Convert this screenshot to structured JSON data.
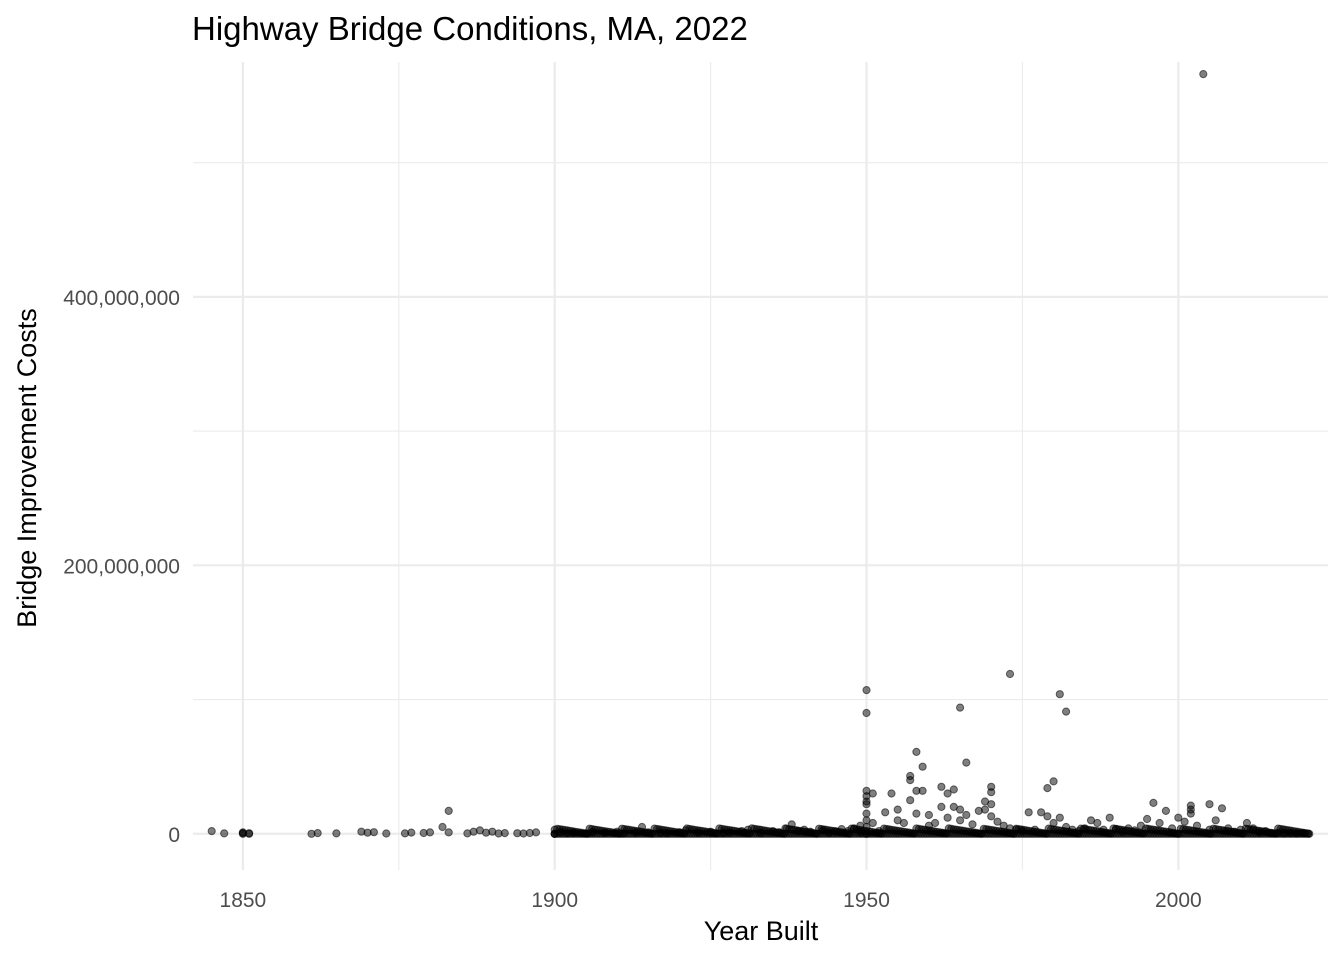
{
  "chart_data": {
    "type": "scatter",
    "title": "Highway Bridge Conditions, MA, 2022",
    "xlabel": "Year Built",
    "ylabel": "Bridge Improvement Costs",
    "xlim": [
      1842,
      2024
    ],
    "ylim": [
      -27000000,
      575000000
    ],
    "x_ticks": [
      {
        "value": 1850,
        "label": "1850"
      },
      {
        "value": 1900,
        "label": "1900"
      },
      {
        "value": 1950,
        "label": "1950"
      },
      {
        "value": 2000,
        "label": "2000"
      }
    ],
    "y_ticks": [
      {
        "value": 0,
        "label": "0"
      },
      {
        "value": 200000000,
        "label": "200,000,000"
      },
      {
        "value": 400000000,
        "label": "400,000,000"
      }
    ],
    "grid": true,
    "legend": "none",
    "point_color": "#000000",
    "point_alpha": 0.5,
    "points": [
      [
        1845,
        2000000
      ],
      [
        1847,
        300000
      ],
      [
        1850,
        0
      ],
      [
        1850,
        500000
      ],
      [
        1850,
        1000000
      ],
      [
        1851,
        0
      ],
      [
        1851,
        400000
      ],
      [
        1861,
        0
      ],
      [
        1862,
        500000
      ],
      [
        1865,
        300000
      ],
      [
        1869,
        1500000
      ],
      [
        1870,
        800000
      ],
      [
        1871,
        1200000
      ],
      [
        1873,
        200000
      ],
      [
        1876,
        300000
      ],
      [
        1877,
        900000
      ],
      [
        1879,
        600000
      ],
      [
        1880,
        1000000
      ],
      [
        1882,
        5000000
      ],
      [
        1883,
        17000000
      ],
      [
        1883,
        1000000
      ],
      [
        1886,
        300000
      ],
      [
        1887,
        1500000
      ],
      [
        1888,
        2500000
      ],
      [
        1889,
        800000
      ],
      [
        1890,
        1500000
      ],
      [
        1891,
        200000
      ],
      [
        1892,
        500000
      ],
      [
        1894,
        400000
      ],
      [
        1895,
        200000
      ],
      [
        1896,
        600000
      ],
      [
        1897,
        1000000
      ],
      [
        1900,
        0
      ],
      [
        1900,
        3000000
      ],
      [
        1901,
        1200000
      ],
      [
        1902,
        500000
      ],
      [
        1903,
        800000
      ],
      [
        1905,
        300000
      ],
      [
        1906,
        1200000
      ],
      [
        1908,
        700000
      ],
      [
        1910,
        1500000
      ],
      [
        1911,
        300000
      ],
      [
        1913,
        900000
      ],
      [
        1914,
        5000000
      ],
      [
        1915,
        1000000
      ],
      [
        1917,
        600000
      ],
      [
        1918,
        400000
      ],
      [
        1920,
        1200000
      ],
      [
        1921,
        2500000
      ],
      [
        1923,
        800000
      ],
      [
        1925,
        1500000
      ],
      [
        1927,
        600000
      ],
      [
        1928,
        1000000
      ],
      [
        1930,
        2000000
      ],
      [
        1931,
        3000000
      ],
      [
        1933,
        700000
      ],
      [
        1935,
        2000000
      ],
      [
        1936,
        1200000
      ],
      [
        1937,
        4000000
      ],
      [
        1938,
        7000000
      ],
      [
        1939,
        2000000
      ],
      [
        1940,
        3000000
      ],
      [
        1941,
        1500000
      ],
      [
        1943,
        2500000
      ],
      [
        1944,
        800000
      ],
      [
        1945,
        1800000
      ],
      [
        1946,
        3500000
      ],
      [
        1947,
        2000000
      ],
      [
        1948,
        4000000
      ],
      [
        1949,
        1000000
      ],
      [
        1949,
        6000000
      ],
      [
        1950,
        107000000
      ],
      [
        1950,
        90000000
      ],
      [
        1950,
        32000000
      ],
      [
        1950,
        28000000
      ],
      [
        1950,
        24000000
      ],
      [
        1950,
        22000000
      ],
      [
        1950,
        15000000
      ],
      [
        1950,
        10000000
      ],
      [
        1950,
        5000000
      ],
      [
        1950,
        0
      ],
      [
        1951,
        30000000
      ],
      [
        1951,
        8000000
      ],
      [
        1952,
        2000000
      ],
      [
        1953,
        16000000
      ],
      [
        1954,
        30000000
      ],
      [
        1955,
        10000000
      ],
      [
        1955,
        18000000
      ],
      [
        1956,
        8000000
      ],
      [
        1957,
        40000000
      ],
      [
        1957,
        43000000
      ],
      [
        1957,
        25000000
      ],
      [
        1958,
        61000000
      ],
      [
        1958,
        32000000
      ],
      [
        1958,
        15000000
      ],
      [
        1959,
        50000000
      ],
      [
        1959,
        32000000
      ],
      [
        1960,
        14000000
      ],
      [
        1960,
        6000000
      ],
      [
        1961,
        8000000
      ],
      [
        1962,
        20000000
      ],
      [
        1962,
        35000000
      ],
      [
        1963,
        30000000
      ],
      [
        1963,
        12000000
      ],
      [
        1964,
        33000000
      ],
      [
        1964,
        20000000
      ],
      [
        1965,
        94000000
      ],
      [
        1965,
        18000000
      ],
      [
        1965,
        10000000
      ],
      [
        1966,
        53000000
      ],
      [
        1966,
        14000000
      ],
      [
        1967,
        7000000
      ],
      [
        1968,
        17000000
      ],
      [
        1969,
        24000000
      ],
      [
        1969,
        18000000
      ],
      [
        1970,
        35000000
      ],
      [
        1970,
        31000000
      ],
      [
        1970,
        13000000
      ],
      [
        1970,
        22000000
      ],
      [
        1971,
        9000000
      ],
      [
        1972,
        6000000
      ],
      [
        1973,
        119000000
      ],
      [
        1973,
        4000000
      ],
      [
        1974,
        3000000
      ],
      [
        1975,
        2000000
      ],
      [
        1976,
        16000000
      ],
      [
        1977,
        3000000
      ],
      [
        1978,
        16000000
      ],
      [
        1979,
        34000000
      ],
      [
        1979,
        13000000
      ],
      [
        1980,
        39000000
      ],
      [
        1980,
        8000000
      ],
      [
        1981,
        104000000
      ],
      [
        1981,
        12000000
      ],
      [
        1982,
        91000000
      ],
      [
        1982,
        5000000
      ],
      [
        1983,
        3000000
      ],
      [
        1984,
        2000000
      ],
      [
        1985,
        4000000
      ],
      [
        1986,
        10000000
      ],
      [
        1987,
        8000000
      ],
      [
        1988,
        3000000
      ],
      [
        1989,
        12000000
      ],
      [
        1990,
        3500000
      ],
      [
        1991,
        1500000
      ],
      [
        1992,
        4000000
      ],
      [
        1993,
        2500000
      ],
      [
        1994,
        6000000
      ],
      [
        1995,
        11000000
      ],
      [
        1996,
        23000000
      ],
      [
        1997,
        8000000
      ],
      [
        1998,
        17000000
      ],
      [
        1999,
        4000000
      ],
      [
        2000,
        12000000
      ],
      [
        2001,
        9000000
      ],
      [
        2002,
        21000000
      ],
      [
        2002,
        15000000
      ],
      [
        2002,
        18000000
      ],
      [
        2003,
        6000000
      ],
      [
        2004,
        566000000
      ],
      [
        2005,
        22000000
      ],
      [
        2005,
        3000000
      ],
      [
        2006,
        10000000
      ],
      [
        2007,
        19000000
      ],
      [
        2008,
        4000000
      ],
      [
        2009,
        1500000
      ],
      [
        2010,
        3000000
      ],
      [
        2011,
        8000000
      ],
      [
        2012,
        4000000
      ],
      [
        2013,
        1000000
      ],
      [
        2014,
        2000000
      ],
      [
        2015,
        500000
      ],
      [
        2016,
        800000
      ],
      [
        2017,
        300000
      ],
      [
        2018,
        600000
      ],
      [
        2019,
        200000
      ],
      [
        2020,
        400000
      ],
      [
        2021,
        0
      ]
    ],
    "dense_band": {
      "x_from": 1900,
      "x_to": 2021,
      "y_min": 0,
      "y_max": 4000000
    }
  }
}
